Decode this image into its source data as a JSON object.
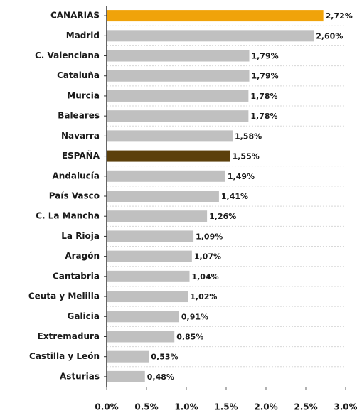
{
  "chart_data": {
    "type": "bar",
    "orientation": "horizontal",
    "categories": [
      "CANARIAS",
      "Madrid",
      "C. Valenciana",
      "Cataluña",
      "Murcia",
      "Baleares",
      "Navarra",
      "ESPAÑA",
      "Andalucía",
      "País Vasco",
      "C. La Mancha",
      "La Rioja",
      "Aragón",
      "Cantabria",
      "Ceuta y Melilla",
      "Galicia",
      "Extremadura",
      "Castilla y León",
      "Asturias"
    ],
    "values": [
      2.72,
      2.6,
      1.79,
      1.79,
      1.78,
      1.78,
      1.58,
      1.55,
      1.49,
      1.41,
      1.26,
      1.09,
      1.07,
      1.04,
      1.02,
      0.91,
      0.85,
      0.53,
      0.48
    ],
    "value_labels": [
      "2,72%",
      "2,60%",
      "1,79%",
      "1,79%",
      "1,78%",
      "1,78%",
      "1,58%",
      "1,55%",
      "1,49%",
      "1,41%",
      "1,26%",
      "1,09%",
      "1,07%",
      "1,04%",
      "1,02%",
      "0,91%",
      "0,85%",
      "0,53%",
      "0,48%"
    ],
    "colors": [
      "#f0a30a",
      "#c0c0c0",
      "#c0c0c0",
      "#c0c0c0",
      "#c0c0c0",
      "#c0c0c0",
      "#c0c0c0",
      "#5c400c",
      "#c0c0c0",
      "#c0c0c0",
      "#c0c0c0",
      "#c0c0c0",
      "#c0c0c0",
      "#c0c0c0",
      "#c0c0c0",
      "#c0c0c0",
      "#c0c0c0",
      "#c0c0c0",
      "#c0c0c0"
    ],
    "xlim": [
      0,
      3.0
    ],
    "xticks": [
      {
        "value": 0,
        "label": "0.0%"
      },
      {
        "value": 0.5,
        "label": "0.5%"
      },
      {
        "value": 1.0,
        "label": "1.0%"
      },
      {
        "value": 1.5,
        "label": "1.5%"
      },
      {
        "value": 2.0,
        "label": "2.0%"
      },
      {
        "value": 2.5,
        "label": "2.5%"
      },
      {
        "value": 3.0,
        "label": "3.0%"
      }
    ]
  }
}
